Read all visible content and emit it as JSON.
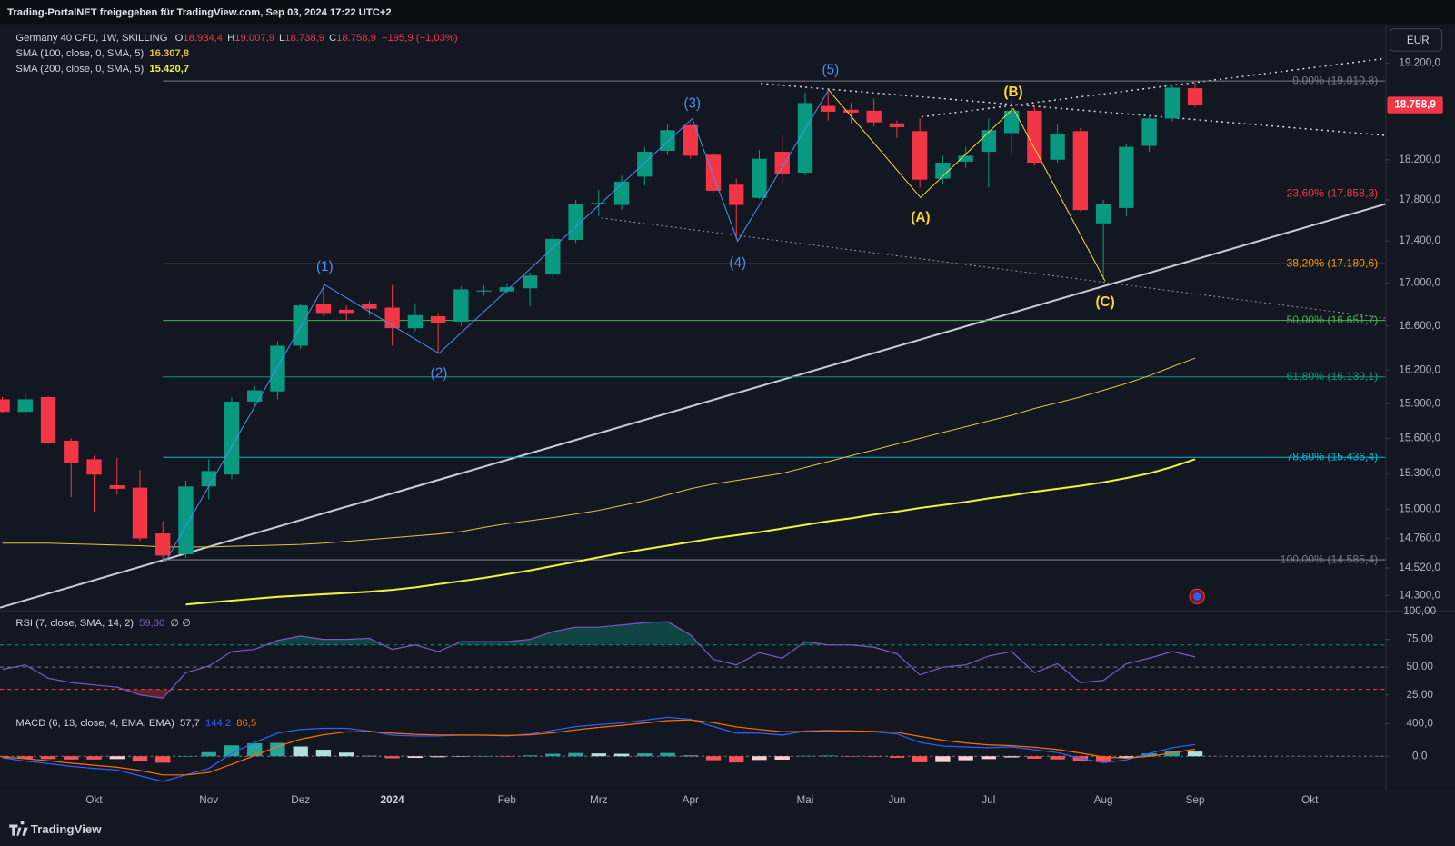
{
  "header": {
    "text": "Trading-PortalNET freigegeben für TradingView.com, Sep 03, 2024 17:22 UTC+2"
  },
  "currency": "EUR",
  "footer": {
    "brand": "TradingView"
  },
  "chart_data": [
    {
      "type": "candlestick",
      "title": "Germany 40 CFD, 1W, SKILLING",
      "legend_ohlc": [
        {
          "key": "O",
          "value": "18.934,4"
        },
        {
          "key": "H",
          "value": "19.007,9"
        },
        {
          "key": "L",
          "value": "18.738,9"
        },
        {
          "key": "C",
          "value": "18.758,9"
        }
      ],
      "change": "−195,9 (−1,03%)",
      "last_price_label": "18.758,9",
      "categories": [
        null,
        null,
        null,
        null,
        "Okt",
        null,
        null,
        null,
        null,
        "Nov",
        null,
        null,
        null,
        "Dez",
        null,
        null,
        null,
        "2024",
        null,
        null,
        null,
        null,
        "Feb",
        null,
        null,
        null,
        "Mrz",
        null,
        null,
        null,
        "Apr",
        null,
        null,
        null,
        null,
        "Mai",
        null,
        null,
        null,
        "Jun",
        null,
        null,
        null,
        "Jul",
        null,
        null,
        null,
        null,
        "Aug",
        null,
        null,
        null,
        "Sep",
        null,
        null,
        null,
        null,
        "Okt",
        null,
        null,
        null
      ],
      "open": [
        15940,
        15830,
        15960,
        15580,
        15420,
        15200,
        15180,
        14800,
        14630,
        15190,
        15290,
        15920,
        16010,
        16420,
        16800,
        16750,
        16800,
        16770,
        16580,
        16690,
        16640,
        16920,
        16920,
        16950,
        17080,
        17410,
        17760,
        17750,
        18030,
        18290,
        18550,
        18250,
        17950,
        17820,
        18280,
        18070,
        18750,
        18710,
        18700,
        18570,
        18490,
        18010,
        18180,
        18280,
        18470,
        18700,
        18200,
        18490,
        17570,
        17720,
        18340,
        18620,
        18934.4,
        null,
        null,
        null,
        null,
        null,
        null,
        null,
        null
      ],
      "high": [
        15960,
        15990,
        15970,
        15600,
        15450,
        15430,
        15330,
        14900,
        15240,
        15420,
        15960,
        16060,
        16460,
        16800,
        16980,
        16790,
        16830,
        16980,
        16810,
        16720,
        16970,
        16980,
        17000,
        17100,
        17470,
        17800,
        17900,
        18040,
        18330,
        18560,
        18570,
        18270,
        18010,
        18300,
        18450,
        18890,
        18890,
        18780,
        18830,
        18600,
        18620,
        18240,
        18330,
        18620,
        18810,
        18740,
        18560,
        18520,
        17800,
        18360,
        18640,
        18960,
        19007.9,
        null,
        null,
        null,
        null,
        null,
        null,
        null,
        null
      ],
      "low": [
        15820,
        15800,
        15550,
        15100,
        14980,
        15120,
        14740,
        14590,
        14600,
        15080,
        15250,
        15890,
        15940,
        16390,
        16690,
        16650,
        16700,
        16420,
        16550,
        16350,
        16600,
        16880,
        16900,
        16780,
        17030,
        17380,
        17640,
        17700,
        17940,
        18250,
        18210,
        17870,
        17420,
        17810,
        17950,
        18040,
        18600,
        18560,
        18540,
        18420,
        17920,
        17960,
        18120,
        17920,
        18250,
        18140,
        18170,
        17690,
        17030,
        17640,
        18280,
        18590,
        18738.9,
        null,
        null,
        null,
        null,
        null,
        null,
        null,
        null
      ],
      "close": [
        15830,
        15940,
        15560,
        15390,
        15290,
        15170,
        14760,
        14620,
        15190,
        15320,
        15920,
        16020,
        16420,
        16790,
        16720,
        16720,
        16760,
        16580,
        16700,
        16630,
        16940,
        16930,
        16960,
        17070,
        17420,
        17760,
        17770,
        17980,
        18280,
        18500,
        18240,
        17890,
        17750,
        18210,
        18060,
        18780,
        18690,
        18680,
        18580,
        18530,
        18000,
        18170,
        18240,
        18500,
        18700,
        18170,
        18460,
        17700,
        17760,
        18330,
        18620,
        18940,
        18758.9,
        null,
        null,
        null,
        null,
        null,
        null,
        null,
        null
      ],
      "up_color": "#089981",
      "down_color": "#f23645",
      "series": [
        {
          "name": "SMA (100, close, 0, SMA, 5)",
          "value_label": "16.307,8",
          "color": "#e2c044",
          "width": 1,
          "values": [
            14720,
            14720,
            14720,
            14715,
            14710,
            14705,
            14700,
            14690,
            14690,
            14690,
            14695,
            14700,
            14705,
            14710,
            14720,
            14735,
            14750,
            14765,
            14780,
            14795,
            14815,
            14850,
            14880,
            14905,
            14930,
            14960,
            14990,
            15030,
            15070,
            15120,
            15170,
            15210,
            15240,
            15270,
            15300,
            15350,
            15400,
            15450,
            15500,
            15550,
            15600,
            15650,
            15700,
            15750,
            15800,
            15860,
            15910,
            15960,
            16020,
            16080,
            16150,
            16230,
            16307.8,
            null,
            null,
            null,
            null,
            null,
            null,
            null,
            null
          ]
        },
        {
          "name": "SMA (200, close, 0, SMA, 5)",
          "value_label": "15.420,7",
          "color": "#eef23c",
          "width": 2,
          "values": [
            null,
            null,
            null,
            null,
            null,
            null,
            null,
            null,
            14230,
            14245,
            14260,
            14275,
            14290,
            14300,
            14310,
            14320,
            14330,
            14345,
            14365,
            14390,
            14415,
            14440,
            14470,
            14500,
            14535,
            14570,
            14605,
            14640,
            14670,
            14700,
            14730,
            14760,
            14785,
            14810,
            14840,
            14870,
            14900,
            14925,
            14955,
            14980,
            15010,
            15035,
            15060,
            15090,
            15115,
            15145,
            15170,
            15195,
            15225,
            15260,
            15300,
            15355,
            15420.7,
            null,
            null,
            null,
            null,
            null,
            null,
            null,
            null
          ]
        }
      ],
      "fib_levels": [
        {
          "label": "0,00% (19.010,8)",
          "value": 19010.8,
          "color": "#787b86"
        },
        {
          "label": "23,60% (17.858,3)",
          "value": 17858.3,
          "color": "#f23645"
        },
        {
          "label": "38,20% (17.180,6)",
          "value": 17180.6,
          "color": "#ff9800"
        },
        {
          "label": "50,00% (16.651,7)",
          "value": 16651.7,
          "color": "#4caf50"
        },
        {
          "label": "61,80% (16.139,1)",
          "value": 16139.1,
          "color": "#089981"
        },
        {
          "label": "78,60% (15.436,4)",
          "value": 15436.4,
          "color": "#00bcd4"
        },
        {
          "label": "100,00% (14.585,4)",
          "value": 14585.4,
          "color": "#787b86"
        }
      ],
      "impulse_waves": [
        "(1)",
        "(2)",
        "(3)",
        "(4)",
        "(5)"
      ],
      "impulse_color": "#4a8ef0",
      "corrective_waves": [
        "(A)",
        "(B)",
        "(C)"
      ],
      "corrective_color": "#fdd835",
      "log_scale": true,
      "ylim": [
        14183,
        19598
      ],
      "yticks": [
        {
          "value": 19200,
          "label": "19.200,0"
        },
        {
          "value": 18200,
          "label": "18.200,0"
        },
        {
          "value": 17800,
          "label": "17.800,0"
        },
        {
          "value": 17400,
          "label": "17.400,0"
        },
        {
          "value": 17000,
          "label": "17.000,0"
        },
        {
          "value": 16600,
          "label": "16.600,0"
        },
        {
          "value": 16200,
          "label": "16.200,0"
        },
        {
          "value": 15900,
          "label": "15.900,0"
        },
        {
          "value": 15600,
          "label": "15.600,0"
        },
        {
          "value": 15300,
          "label": "15.300,0"
        },
        {
          "value": 15000,
          "label": "15.000,0"
        },
        {
          "value": 14760,
          "label": "14.760,0"
        },
        {
          "value": 14520,
          "label": "14.520,0"
        },
        {
          "value": 14300,
          "label": "14.300,0"
        }
      ]
    },
    {
      "type": "line",
      "title": "RSI (7, close, SMA, 14, 2)",
      "value_label": "59,30",
      "extra": "∅  ∅",
      "color": "#7e57c2",
      "values": [
        48,
        52,
        40,
        36,
        34,
        32,
        25,
        22,
        45,
        51,
        64,
        66,
        74,
        78,
        75,
        75,
        76,
        66,
        70,
        64,
        73,
        73,
        73,
        75,
        82,
        86,
        86,
        88,
        90,
        91,
        79,
        57,
        52,
        63,
        58,
        73,
        70,
        70,
        68,
        62,
        43,
        50,
        52,
        60,
        64,
        45,
        53,
        36,
        38,
        53,
        58,
        64,
        59.3
      ],
      "levels": [
        {
          "value": 70,
          "color": "#089981",
          "fill_side": "above"
        },
        {
          "value": 50,
          "color": "#787b86"
        },
        {
          "value": 30,
          "color": "#f23645",
          "fill_side": "below"
        }
      ],
      "ylim": [
        10,
        102
      ],
      "yticks": [
        {
          "value": 100,
          "label": "100,00"
        },
        {
          "value": 75,
          "label": "75,00"
        },
        {
          "value": 50,
          "label": "50,00"
        },
        {
          "value": 25,
          "label": "25,00"
        }
      ]
    },
    {
      "type": "macd",
      "title": "MACD (6, 13, close, 4, EMA, EMA)",
      "histogram": {
        "value_label": "57,7",
        "colors": [
          "#26a69a",
          "#b2dfdb",
          "#ff5252",
          "#ffcdd2"
        ],
        "values": [
          -10,
          -30,
          -35,
          -40,
          -40,
          -35,
          -65,
          -80,
          0,
          50,
          135,
          160,
          165,
          120,
          80,
          45,
          5,
          -25,
          -20,
          -12,
          -1,
          0,
          -6,
          11,
          30,
          40,
          35,
          30,
          35,
          40,
          8,
          -49,
          -77,
          -46,
          -42,
          5,
          9,
          -1,
          -7,
          -19,
          -75,
          -72,
          -49,
          -35,
          -15,
          -30,
          -39,
          -65,
          -72,
          -22,
          35,
          63,
          57.7
        ]
      },
      "series": [
        {
          "value_label": "144,2",
          "color": "#2962ff",
          "values": [
            -20,
            -60,
            -90,
            -125,
            -150,
            -170,
            -240,
            -310,
            -230,
            -150,
            35,
            170,
            285,
            330,
            345,
            345,
            310,
            260,
            250,
            250,
            260,
            260,
            250,
            275,
            320,
            365,
            390,
            410,
            445,
            480,
            455,
            365,
            285,
            285,
            260,
            310,
            320,
            310,
            300,
            275,
            170,
            125,
            115,
            105,
            115,
            80,
            45,
            -25,
            -80,
            -45,
            35,
            105,
            144.2
          ]
        },
        {
          "value_label": "86,5",
          "color": "#ff6d00",
          "values": [
            -10,
            -30,
            -55,
            -85,
            -110,
            -135,
            -175,
            -230,
            -230,
            -200,
            -100,
            10,
            120,
            210,
            265,
            300,
            305,
            285,
            270,
            262,
            261,
            260,
            256,
            264,
            290,
            325,
            355,
            380,
            410,
            440,
            447,
            414,
            362,
            331,
            302,
            305,
            311,
            311,
            307,
            294,
            245,
            197,
            164,
            140,
            130,
            110,
            84,
            40,
            -8,
            -23,
            0,
            42,
            86.5
          ]
        }
      ],
      "ylim": [
        -420,
        540
      ],
      "yticks": [
        {
          "value": 400,
          "label": "400,0"
        },
        {
          "value": 0,
          "label": "0,0"
        }
      ]
    }
  ]
}
